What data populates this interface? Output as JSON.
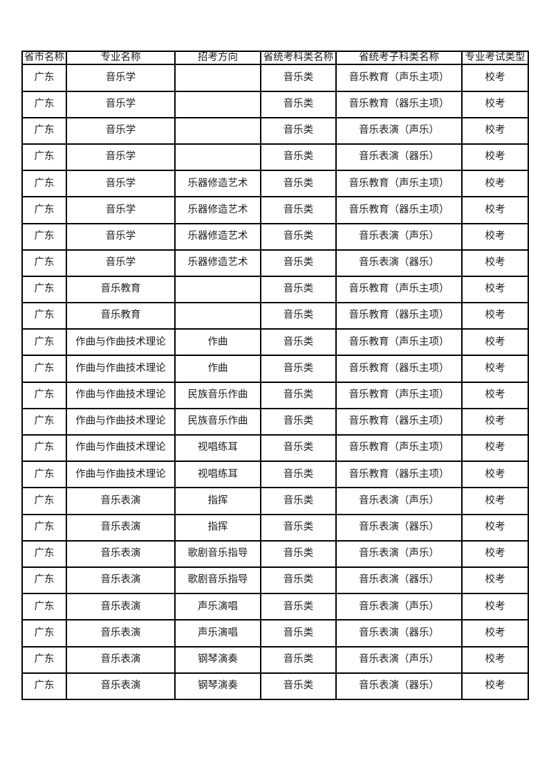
{
  "page": {
    "background_color": "#ffffff",
    "border_color": "#000000",
    "text_color": "#1c1c1c"
  },
  "table": {
    "headers": [
      "省市名称",
      "专业名称",
      "招考方向",
      "省统考科类名称",
      "省统考子科类名称",
      "专业考试类型"
    ],
    "rows": [
      [
        "广东",
        "音乐学",
        "",
        "音乐类",
        "音乐教育（声乐主项）",
        "校考"
      ],
      [
        "广东",
        "音乐学",
        "",
        "音乐类",
        "音乐教育（器乐主项）",
        "校考"
      ],
      [
        "广东",
        "音乐学",
        "",
        "音乐类",
        "音乐表演（声乐）",
        "校考"
      ],
      [
        "广东",
        "音乐学",
        "",
        "音乐类",
        "音乐表演（器乐）",
        "校考"
      ],
      [
        "广东",
        "音乐学",
        "乐器修造艺术",
        "音乐类",
        "音乐教育（声乐主项）",
        "校考"
      ],
      [
        "广东",
        "音乐学",
        "乐器修造艺术",
        "音乐类",
        "音乐教育（器乐主项）",
        "校考"
      ],
      [
        "广东",
        "音乐学",
        "乐器修造艺术",
        "音乐类",
        "音乐表演（声乐）",
        "校考"
      ],
      [
        "广东",
        "音乐学",
        "乐器修造艺术",
        "音乐类",
        "音乐表演（器乐）",
        "校考"
      ],
      [
        "广东",
        "音乐教育",
        "",
        "音乐类",
        "音乐教育（声乐主项）",
        "校考"
      ],
      [
        "广东",
        "音乐教育",
        "",
        "音乐类",
        "音乐教育（器乐主项）",
        "校考"
      ],
      [
        "广东",
        "作曲与作曲技术理论",
        "作曲",
        "音乐类",
        "音乐教育（声乐主项）",
        "校考"
      ],
      [
        "广东",
        "作曲与作曲技术理论",
        "作曲",
        "音乐类",
        "音乐教育（器乐主项）",
        "校考"
      ],
      [
        "广东",
        "作曲与作曲技术理论",
        "民族音乐作曲",
        "音乐类",
        "音乐教育（声乐主项）",
        "校考"
      ],
      [
        "广东",
        "作曲与作曲技术理论",
        "民族音乐作曲",
        "音乐类",
        "音乐教育（器乐主项）",
        "校考"
      ],
      [
        "广东",
        "作曲与作曲技术理论",
        "视唱练耳",
        "音乐类",
        "音乐教育（声乐主项）",
        "校考"
      ],
      [
        "广东",
        "作曲与作曲技术理论",
        "视唱练耳",
        "音乐类",
        "音乐教育（器乐主项）",
        "校考"
      ],
      [
        "广东",
        "音乐表演",
        "指挥",
        "音乐类",
        "音乐表演（声乐）",
        "校考"
      ],
      [
        "广东",
        "音乐表演",
        "指挥",
        "音乐类",
        "音乐表演（器乐）",
        "校考"
      ],
      [
        "广东",
        "音乐表演",
        "歌剧音乐指导",
        "音乐类",
        "音乐表演（声乐）",
        "校考"
      ],
      [
        "广东",
        "音乐表演",
        "歌剧音乐指导",
        "音乐类",
        "音乐表演（器乐）",
        "校考"
      ],
      [
        "广东",
        "音乐表演",
        "声乐演唱",
        "音乐类",
        "音乐表演（声乐）",
        "校考"
      ],
      [
        "广东",
        "音乐表演",
        "声乐演唱",
        "音乐类",
        "音乐表演（器乐）",
        "校考"
      ],
      [
        "广东",
        "音乐表演",
        "钢琴演奏",
        "音乐类",
        "音乐表演（声乐）",
        "校考"
      ],
      [
        "广东",
        "音乐表演",
        "钢琴演奏",
        "音乐类",
        "音乐表演（器乐）",
        "校考"
      ]
    ]
  }
}
